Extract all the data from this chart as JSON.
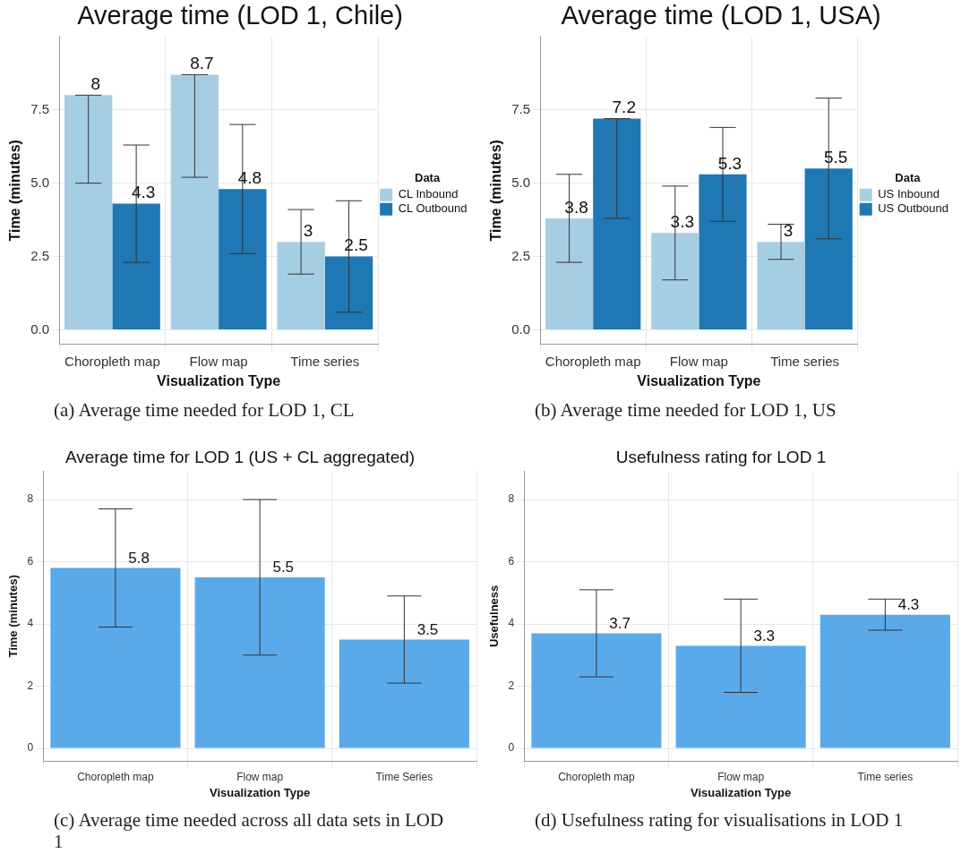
{
  "chart_data": [
    {
      "type": "bar",
      "title": "Average time (LOD 1, Chile)",
      "xlabel": "Visualization Type",
      "ylabel": "Time (minutes)",
      "legend_title": "Data",
      "legend": "right",
      "grid": true,
      "data_labels": true,
      "categories": [
        "Choropleth map",
        "Flow map",
        "Time series"
      ],
      "ylim": [
        -0.5,
        10.0
      ],
      "yticks": [
        {
          "value": 0,
          "label": "0.0"
        },
        {
          "value": 2.5,
          "label": "2.5"
        },
        {
          "value": 5,
          "label": "5.0"
        },
        {
          "value": 7.5,
          "label": "7.5"
        }
      ],
      "series": [
        {
          "name": "CL Inbound",
          "color": "#a6cee3",
          "values": [
            8,
            8.7,
            3
          ],
          "errors": [
            [
              5.0,
              8
            ],
            [
              5.2,
              8.7
            ],
            [
              1.9,
              4.1
            ]
          ]
        },
        {
          "name": "CL Outbound",
          "color": "#1f78b4",
          "values": [
            4.3,
            4.8,
            2.5
          ],
          "errors": [
            [
              2.3,
              6.3
            ],
            [
              2.6,
              7.0
            ],
            [
              0.6,
              4.4
            ]
          ]
        }
      ],
      "annotations": [
        "(a)  Average time needed for LOD 1, CL"
      ]
    },
    {
      "type": "bar",
      "title": "Average time (LOD 1, USA)",
      "xlabel": "Visualization Type",
      "ylabel": "Time (minutes)",
      "legend_title": "Data",
      "legend": "right",
      "grid": true,
      "data_labels": true,
      "categories": [
        "Choropleth map",
        "Flow map",
        "Time series"
      ],
      "ylim": [
        -0.5,
        10.0
      ],
      "yticks": [
        {
          "value": 0,
          "label": "0.0"
        },
        {
          "value": 2.5,
          "label": "2.5"
        },
        {
          "value": 5,
          "label": "5.0"
        },
        {
          "value": 7.5,
          "label": "7.5"
        }
      ],
      "series": [
        {
          "name": "US Inbound",
          "color": "#a6cee3",
          "values": [
            3.8,
            3.3,
            3
          ],
          "errors": [
            [
              2.3,
              5.3
            ],
            [
              1.7,
              4.9
            ],
            [
              2.4,
              3.6
            ]
          ]
        },
        {
          "name": "US Outbound",
          "color": "#1f78b4",
          "values": [
            7.2,
            5.3,
            5.5
          ],
          "errors": [
            [
              3.8,
              7.2
            ],
            [
              3.7,
              6.9
            ],
            [
              3.1,
              7.9
            ]
          ]
        }
      ],
      "annotations": [
        "(b)  Average time needed for LOD 1, US"
      ]
    },
    {
      "type": "bar",
      "title": "Average time for LOD 1 (US + CL aggregated)",
      "xlabel": "Visualization Type",
      "ylabel": "Time (minutes)",
      "grid": true,
      "data_labels": true,
      "categories": [
        "Choropleth map",
        "Flow map",
        "Time Series"
      ],
      "ylim": [
        -0.4,
        8.9
      ],
      "yticks": [
        0,
        2,
        4,
        6,
        8
      ],
      "color": "#5aaaea",
      "values": [
        5.8,
        5.5,
        3.5
      ],
      "errors": [
        [
          3.9,
          7.7
        ],
        [
          3.0,
          8.0
        ],
        [
          2.1,
          4.9
        ]
      ],
      "annotations": [
        "(c)  Average time needed across all data sets in LOD 1"
      ]
    },
    {
      "type": "bar",
      "title": "Usefulness rating for LOD 1",
      "xlabel": "Visualization Type",
      "ylabel": "Usefulness",
      "grid": true,
      "data_labels": true,
      "categories": [
        "Choropleth map",
        "Flow map",
        "Time series"
      ],
      "ylim": [
        -0.4,
        8.9
      ],
      "yticks": [
        0,
        2,
        4,
        6,
        8
      ],
      "color": "#5aaaea",
      "values": [
        3.7,
        3.3,
        4.3
      ],
      "errors": [
        [
          2.3,
          5.1
        ],
        [
          1.8,
          4.8
        ],
        [
          3.8,
          4.8
        ]
      ],
      "annotations": [
        "(d)  Usefulness rating for visualisations in LOD 1"
      ]
    }
  ]
}
